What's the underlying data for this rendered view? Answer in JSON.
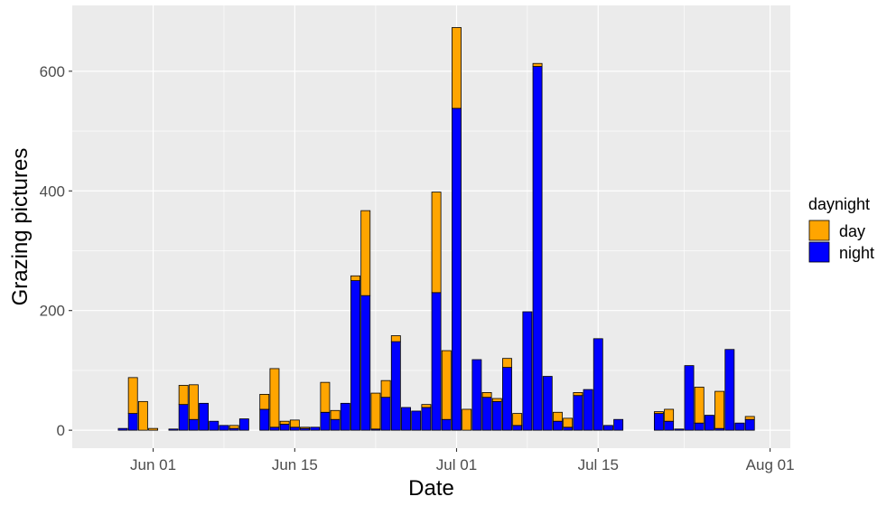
{
  "chart_data": {
    "type": "bar",
    "stacked": true,
    "title": "",
    "xlabel": "Date",
    "ylabel": "Grazing pictures",
    "xlim": [
      "2021-05-24",
      "2021-08-03"
    ],
    "ylim": [
      -30,
      710
    ],
    "x_ticks": [
      {
        "date": "2021-06-01",
        "label": "Jun 01"
      },
      {
        "date": "2021-06-15",
        "label": "Jun 15"
      },
      {
        "date": "2021-07-01",
        "label": "Jul 01"
      },
      {
        "date": "2021-07-15",
        "label": "Jul 15"
      },
      {
        "date": "2021-08-01",
        "label": "Aug 01"
      }
    ],
    "y_ticks": [
      0,
      200,
      400,
      600
    ],
    "grid": true,
    "legend": {
      "title": "daynight",
      "position": "right"
    },
    "colors": {
      "day": "#FFA500",
      "night": "#0000FF",
      "panel": "#EBEBEB",
      "grid": "#FFFFFF"
    },
    "series": [
      {
        "name": "night",
        "values": [
          3,
          28,
          0,
          0,
          2,
          43,
          18,
          45,
          15,
          8,
          3,
          19,
          35,
          5,
          10,
          5,
          3,
          5,
          30,
          18,
          45,
          250,
          225,
          2,
          55,
          148,
          38,
          32,
          38,
          230,
          18,
          538,
          0,
          118,
          55,
          48,
          105,
          8,
          198,
          608,
          90,
          15,
          5,
          58,
          68,
          153,
          8,
          18,
          28,
          15,
          2,
          108,
          12,
          25,
          3,
          135,
          12,
          18
        ]
      },
      {
        "name": "day",
        "values": [
          0,
          60,
          48,
          3,
          0,
          32,
          58,
          0,
          0,
          0,
          5,
          0,
          25,
          98,
          5,
          12,
          2,
          0,
          50,
          15,
          0,
          8,
          142,
          60,
          28,
          10,
          0,
          0,
          5,
          168,
          115,
          135,
          35,
          0,
          8,
          5,
          15,
          20,
          0,
          5,
          0,
          15,
          15,
          5,
          0,
          0,
          0,
          0,
          3,
          20,
          0,
          0,
          60,
          0,
          62,
          0,
          0,
          5
        ]
      }
    ],
    "x": [
      "2021-05-29",
      "2021-05-30",
      "2021-05-31",
      "2021-06-01",
      "2021-06-03",
      "2021-06-04",
      "2021-06-05",
      "2021-06-06",
      "2021-06-07",
      "2021-06-08",
      "2021-06-09",
      "2021-06-10",
      "2021-06-12",
      "2021-06-13",
      "2021-06-14",
      "2021-06-15",
      "2021-06-16",
      "2021-06-17",
      "2021-06-18",
      "2021-06-19",
      "2021-06-20",
      "2021-06-21",
      "2021-06-22",
      "2021-06-23",
      "2021-06-24",
      "2021-06-25",
      "2021-06-26",
      "2021-06-27",
      "2021-06-28",
      "2021-06-29",
      "2021-06-30",
      "2021-07-01",
      "2021-07-02",
      "2021-07-03",
      "2021-07-04",
      "2021-07-05",
      "2021-07-06",
      "2021-07-07",
      "2021-07-08",
      "2021-07-09",
      "2021-07-10",
      "2021-07-11",
      "2021-07-12",
      "2021-07-13",
      "2021-07-14",
      "2021-07-15",
      "2021-07-16",
      "2021-07-17",
      "2021-07-21",
      "2021-07-22",
      "2021-07-23",
      "2021-07-24",
      "2021-07-25",
      "2021-07-26",
      "2021-07-27",
      "2021-07-28",
      "2021-07-29",
      "2021-07-30"
    ]
  }
}
